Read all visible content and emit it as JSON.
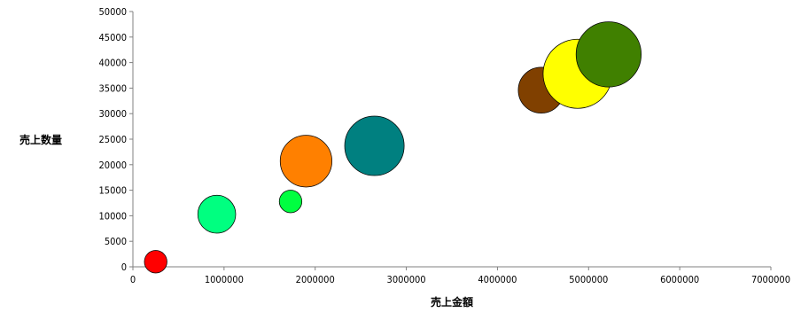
{
  "chart_data": {
    "type": "bubble",
    "title": "",
    "xlabel": "売上金額",
    "ylabel": "売上数量",
    "xlim": [
      0,
      7000000
    ],
    "ylim": [
      0,
      50000
    ],
    "x_ticks": [
      "0",
      "1000000",
      "2000000",
      "3000000",
      "4000000",
      "5000000",
      "6000000",
      "7000000"
    ],
    "y_ticks": [
      "0",
      "5000",
      "10000",
      "15000",
      "20000",
      "25000",
      "30000",
      "35000",
      "40000",
      "45000",
      "50000"
    ],
    "grid": false,
    "legend": "none",
    "points": [
      {
        "x": 250000,
        "y": 1000,
        "size": 1.6,
        "color": "#ff0000"
      },
      {
        "x": 920000,
        "y": 10300,
        "size": 4.5,
        "color": "#00ff80"
      },
      {
        "x": 1730000,
        "y": 12800,
        "size": 1.6,
        "color": "#00ff40"
      },
      {
        "x": 1900000,
        "y": 20700,
        "size": 8.4,
        "color": "#ff8000"
      },
      {
        "x": 2650000,
        "y": 23700,
        "size": 11.1,
        "color": "#008080"
      },
      {
        "x": 4480000,
        "y": 34600,
        "size": 6.6,
        "color": "#804000"
      },
      {
        "x": 4880000,
        "y": 37800,
        "size": 15.0,
        "color": "#ffff00"
      },
      {
        "x": 5220000,
        "y": 41600,
        "size": 13.3,
        "color": "#408000"
      }
    ]
  }
}
